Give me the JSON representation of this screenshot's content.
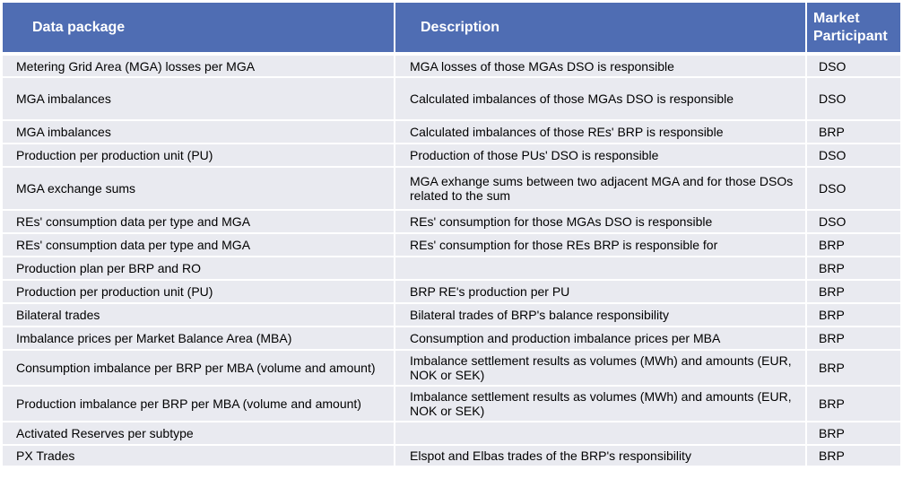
{
  "headers": {
    "data_package": "Data package",
    "description": "Description",
    "market_participant": "Market Participant"
  },
  "rows": [
    {
      "package": "Metering Grid Area (MGA) losses per MGA",
      "description": "MGA losses of those MGAs DSO is responsible",
      "participant": "DSO"
    },
    {
      "package": "MGA imbalances",
      "description": "Calculated imbalances of those MGAs DSO is responsible",
      "participant": "DSO"
    },
    {
      "package": "MGA imbalances",
      "description": "Calculated imbalances of those REs' BRP is responsible",
      "participant": "BRP"
    },
    {
      "package": "Production per production unit (PU)",
      "description": "Production of those PUs' DSO is responsible",
      "participant": "DSO"
    },
    {
      "package": "MGA exchange sums",
      "description": "MGA exhange sums between two adjacent MGA and for those DSOs related to the sum",
      "participant": "DSO"
    },
    {
      "package": "REs' consumption data per type and MGA",
      "description": "REs' consumption for those MGAs DSO is responsible",
      "participant": "DSO"
    },
    {
      "package": "REs' consumption data per type and MGA",
      "description": "REs' consumption for those REs BRP is responsible for",
      "participant": "BRP"
    },
    {
      "package": "Production plan per BRP and RO",
      "description": "",
      "participant": "BRP"
    },
    {
      "package": "Production per production unit (PU)",
      "description": "BRP RE's production per PU",
      "participant": "BRP"
    },
    {
      "package": "Bilateral trades",
      "description": "Bilateral trades of BRP's balance responsibility",
      "participant": "BRP"
    },
    {
      "package": "Imbalance prices per Market Balance Area (MBA)",
      "description": "Consumption and production imbalance prices per MBA",
      "participant": "BRP"
    },
    {
      "package": "Consumption imbalance per BRP per MBA (volume and amount)",
      "description": "Imbalance settlement results as volumes (MWh) and amounts (EUR, NOK or SEK)",
      "participant": "BRP"
    },
    {
      "package": "Production imbalance per BRP per MBA (volume and amount)",
      "description": "Imbalance settlement results as volumes (MWh) and amounts (EUR, NOK or SEK)",
      "participant": "BRP"
    },
    {
      "package": "Activated Reserves per subtype",
      "description": "",
      "participant": "BRP"
    },
    {
      "package": "PX Trades",
      "description": "Elspot and Elbas trades of the BRP's responsibility",
      "participant": "BRP"
    }
  ],
  "colors": {
    "header_bg": "#4f6db3",
    "row_bg": "#e9eaf0"
  }
}
